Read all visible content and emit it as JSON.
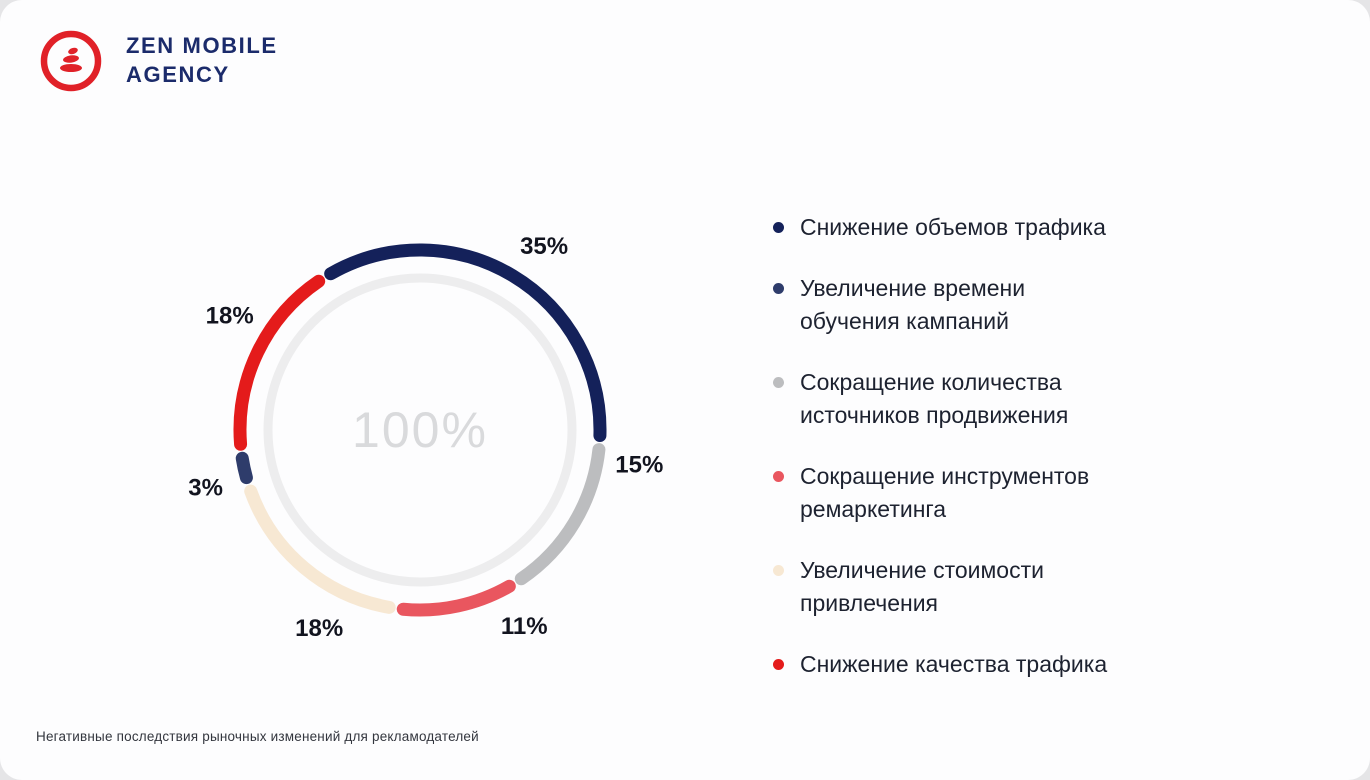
{
  "page": {
    "background": "#e5e5e7",
    "card_background": "#fdfdfe"
  },
  "logo": {
    "line1": "ZEN MOBILE",
    "line2": "AGENCY",
    "text_color": "#1b2b6b",
    "icon_color": "#e02128",
    "icon": "zen-ink-circle-icon"
  },
  "chart_data": {
    "type": "pie",
    "subtype": "donut",
    "title": "Негативные последствия рыночных изменений для рекламодателей",
    "center_label": "100%",
    "center_label_color": "#d9dadc",
    "inner_ring_color": "#ededee",
    "start_angle_deg": -32,
    "gap_deg": 4.5,
    "label_radius": 222,
    "label_angles_deg": [
      34,
      99,
      152,
      207,
      255,
      301
    ],
    "value_label_color": "#12141f",
    "segments": [
      {
        "label": "Снижение объемов трафика",
        "value": 35,
        "value_label": "35%",
        "color": "#14215a"
      },
      {
        "label": "Сокращение количества источников продвижения",
        "value": 15,
        "value_label": "15%",
        "color": "#bcbdbf"
      },
      {
        "label": "Сокращение инструментов ремаркетинга",
        "value": 11,
        "value_label": "11%",
        "color": "#e9565f"
      },
      {
        "label": "Увеличение стоимости привлечения",
        "value": 18,
        "value_label": "18%",
        "color": "#f7e8d3"
      },
      {
        "label": "Увеличение времени обучения кампаний",
        "value": 3,
        "value_label": "3%",
        "color": "#2e3c6b"
      },
      {
        "label": "Снижение качества трафика",
        "value": 18,
        "value_label": "18%",
        "color": "#e41b1b"
      }
    ]
  },
  "legend": {
    "items": [
      {
        "lines": [
          "Снижение объемов трафика"
        ],
        "color": "#14215a"
      },
      {
        "lines": [
          "Увеличение времени",
          "обучения кампаний"
        ],
        "color": "#2e3c6b"
      },
      {
        "lines": [
          "Сокращение количества",
          "источников продвижения"
        ],
        "color": "#bcbdbf"
      },
      {
        "lines": [
          "Сокращение инструментов",
          "ремаркетинга"
        ],
        "color": "#e9565f"
      },
      {
        "lines": [
          "Увеличение стоимости",
          "привлечения"
        ],
        "color": "#f7e8d3"
      },
      {
        "lines": [
          "Снижение качества трафика"
        ],
        "color": "#e41b1b"
      }
    ]
  },
  "footer": {
    "caption": "Негативные последствия рыночных изменений для рекламодателей"
  }
}
